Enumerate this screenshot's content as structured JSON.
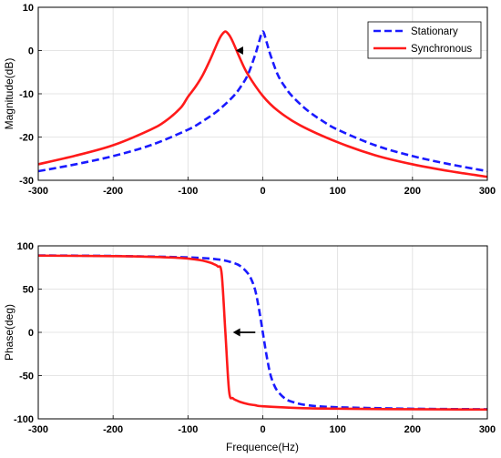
{
  "chart_data": [
    {
      "type": "line",
      "title": "",
      "xlabel": "",
      "ylabel": "Magnitude(dB)",
      "xlim": [
        -300,
        300
      ],
      "ylim": [
        -30,
        10
      ],
      "xticks": [
        -300,
        -200,
        -100,
        0,
        100,
        200,
        300
      ],
      "yticks": [
        10,
        0,
        -10,
        -20,
        -30
      ],
      "grid": true,
      "legend": "top-right",
      "annotation": {
        "type": "arrow",
        "direction": "left",
        "from": [
          -26,
          0
        ],
        "to": [
          -36,
          0
        ]
      },
      "series": [
        {
          "name": "Stationary",
          "color": "#1a1aff",
          "style": "dashed",
          "x": [
            -300,
            -250,
            -200,
            -150,
            -100,
            -80,
            -60,
            -40,
            -30,
            -20,
            -10,
            -5,
            0,
            5,
            10,
            20,
            30,
            40,
            60,
            80,
            100,
            150,
            200,
            250,
            300
          ],
          "y": [
            -27.9,
            -26.3,
            -24.4,
            -21.9,
            -18.3,
            -16.3,
            -13.9,
            -10.7,
            -8.5,
            -5.6,
            -0.9,
            2.0,
            4.4,
            2.0,
            -0.9,
            -5.6,
            -8.5,
            -10.7,
            -13.9,
            -16.3,
            -18.3,
            -21.9,
            -24.4,
            -26.3,
            -27.9
          ]
        },
        {
          "name": "Synchronous",
          "color": "#ff1a1a",
          "style": "solid",
          "x": [
            -300,
            -250,
            -200,
            -150,
            -130,
            -110,
            -100,
            -90,
            -80,
            -70,
            -60,
            -55,
            -50,
            -45,
            -40,
            -30,
            -20,
            0,
            20,
            50,
            100,
            150,
            200,
            250,
            300
          ],
          "y": [
            -26.3,
            -24.3,
            -21.9,
            -18.3,
            -16.3,
            -13.3,
            -10.7,
            -8.4,
            -5.6,
            -2.0,
            2.0,
            3.6,
            4.4,
            3.6,
            2.0,
            -2.0,
            -5.5,
            -10.5,
            -13.9,
            -17.3,
            -21.2,
            -24.2,
            -26.3,
            -27.9,
            -29.2
          ]
        }
      ]
    },
    {
      "type": "line",
      "title": "",
      "xlabel": "Frequence(Hz)",
      "ylabel": "Phase(deg)",
      "xlim": [
        -300,
        300
      ],
      "ylim": [
        -100,
        100
      ],
      "xticks": [
        -300,
        -200,
        -100,
        0,
        100,
        200,
        300
      ],
      "yticks": [
        100,
        50,
        0,
        -50,
        -100
      ],
      "grid": true,
      "annotation": {
        "type": "arrow",
        "direction": "left",
        "from": [
          -10,
          0
        ],
        "to": [
          -40,
          0
        ]
      },
      "series": [
        {
          "name": "Stationary",
          "color": "#1a1aff",
          "style": "dashed",
          "x": [
            -300,
            -200,
            -100,
            -60,
            -40,
            -30,
            -20,
            -15,
            -10,
            -5,
            0,
            5,
            10,
            15,
            20,
            30,
            40,
            60,
            100,
            200,
            300
          ],
          "y": [
            88.9,
            88.3,
            86.6,
            84.3,
            80.5,
            76.7,
            68.2,
            60.6,
            48.2,
            26.6,
            0,
            -26.6,
            -48.2,
            -60.6,
            -68.2,
            -76.7,
            -80.5,
            -84.3,
            -86.6,
            -88.3,
            -88.9
          ]
        },
        {
          "name": "Synchronous",
          "color": "#ff1a1a",
          "style": "solid",
          "x": [
            -300,
            -200,
            -150,
            -110,
            -90,
            -80,
            -70,
            -65,
            -60,
            -55,
            -50,
            -45,
            -40,
            -35,
            -30,
            -20,
            -10,
            0,
            50,
            100,
            200,
            300
          ],
          "y": [
            88.7,
            88.1,
            87.3,
            86.0,
            84.3,
            82.9,
            80.5,
            78.7,
            76.1,
            68.2,
            0,
            -68.2,
            -76.1,
            -78.7,
            -80.5,
            -82.9,
            -84.3,
            -85.5,
            -87.6,
            -88.3,
            -88.9,
            -89.2
          ]
        }
      ]
    }
  ]
}
